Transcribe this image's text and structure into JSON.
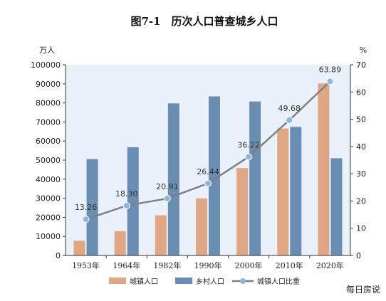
{
  "chart_data": {
    "type": "bar",
    "title": "图7-1　历次人口普查城乡人口",
    "ylabel_left": "万人",
    "ylabel_right": "%",
    "categories": [
      "1953年",
      "1964年",
      "1982年",
      "1990年",
      "2000年",
      "2010年",
      "2020年"
    ],
    "ylim_left": [
      0,
      100000
    ],
    "yticks_left": [
      "0",
      "10000",
      "20000",
      "30000",
      "40000",
      "50000",
      "60000",
      "70000",
      "80000",
      "90000",
      "100000"
    ],
    "ylim_right": [
      0,
      70
    ],
    "yticks_right": [
      "0",
      "10",
      "20",
      "30",
      "40",
      "50",
      "60",
      "70"
    ],
    "series": [
      {
        "name": "城镇人口",
        "type": "bar",
        "axis": "left",
        "color": "#e0a784",
        "values": [
          7726,
          12710,
          21082,
          29971,
          45844,
          66557,
          90199
        ]
      },
      {
        "name": "乡村人口",
        "type": "bar",
        "axis": "left",
        "color": "#6a8eb3",
        "values": [
          50534,
          56748,
          79736,
          83397,
          80739,
          67415,
          50979
        ]
      },
      {
        "name": "城镇人口比重",
        "type": "line",
        "axis": "right",
        "color": "#808080",
        "marker_color": "#8fb4e0",
        "values": [
          13.26,
          18.3,
          20.91,
          26.44,
          36.22,
          49.68,
          63.89
        ],
        "labels": [
          "13.26",
          "18.30",
          "20.91",
          "26.44",
          "36.22",
          "49.68",
          "63.89"
        ]
      }
    ],
    "legend_position": "bottom",
    "plot_background": "#eaf1fb",
    "grid": false
  },
  "watermark": "每日房说"
}
